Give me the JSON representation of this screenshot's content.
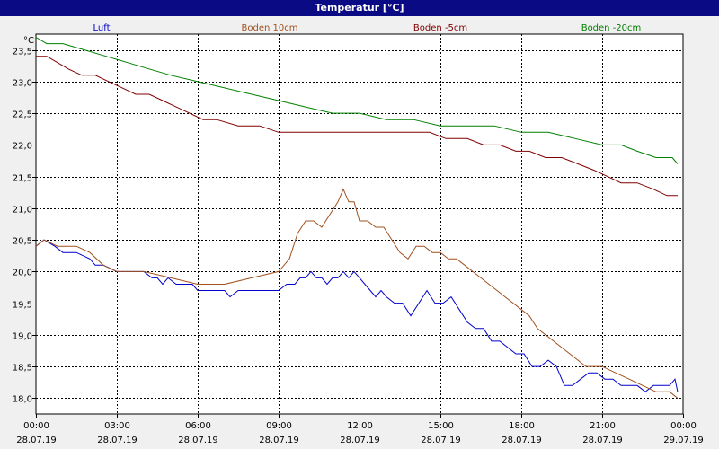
{
  "window": {
    "title": "Temperatur [°C]"
  },
  "chart_data": {
    "type": "line",
    "title": "Temperatur [°C]",
    "ylabel": "°C",
    "xlabel": "",
    "ylim": [
      17.75,
      23.75
    ],
    "xlim": [
      0,
      24
    ],
    "grid": true,
    "legend_placement": "top",
    "y_ticks": [
      {
        "value": 18.0,
        "label": "18,0"
      },
      {
        "value": 18.5,
        "label": "18,5"
      },
      {
        "value": 19.0,
        "label": "19,0"
      },
      {
        "value": 19.5,
        "label": "19,5"
      },
      {
        "value": 20.0,
        "label": "20,0"
      },
      {
        "value": 20.5,
        "label": "20,5"
      },
      {
        "value": 21.0,
        "label": "21,0"
      },
      {
        "value": 21.5,
        "label": "21,5"
      },
      {
        "value": 22.0,
        "label": "22,0"
      },
      {
        "value": 22.5,
        "label": "22,5"
      },
      {
        "value": 23.0,
        "label": "23,0"
      },
      {
        "value": 23.5,
        "label": "23,5"
      }
    ],
    "x_ticks": [
      {
        "value": 0,
        "time": "00:00",
        "date": "28.07.19"
      },
      {
        "value": 3,
        "time": "03:00",
        "date": "28.07.19"
      },
      {
        "value": 6,
        "time": "06:00",
        "date": "28.07.19"
      },
      {
        "value": 9,
        "time": "09:00",
        "date": "28.07.19"
      },
      {
        "value": 12,
        "time": "12:00",
        "date": "28.07.19"
      },
      {
        "value": 15,
        "time": "15:00",
        "date": "28.07.19"
      },
      {
        "value": 18,
        "time": "18:00",
        "date": "28.07.19"
      },
      {
        "value": 21,
        "time": "21:00",
        "date": "28.07.19"
      },
      {
        "value": 24,
        "time": "00:00",
        "date": "29.07.19"
      }
    ],
    "series": [
      {
        "name": "Luft",
        "color": "#0000cc",
        "x": [
          0,
          0.3,
          0.7,
          1.0,
          1.5,
          2.0,
          2.2,
          2.5,
          3.0,
          3.5,
          4.0,
          4.3,
          4.5,
          4.7,
          4.9,
          5.2,
          5.5,
          5.8,
          6.0,
          6.5,
          6.8,
          7.0,
          7.2,
          7.5,
          8.0,
          8.5,
          9.0,
          9.3,
          9.6,
          9.8,
          10.0,
          10.2,
          10.4,
          10.6,
          10.8,
          11.0,
          11.2,
          11.4,
          11.6,
          11.8,
          12.0,
          12.2,
          12.4,
          12.6,
          12.8,
          13.0,
          13.3,
          13.6,
          13.9,
          14.2,
          14.5,
          14.8,
          15.1,
          15.4,
          15.7,
          16.0,
          16.3,
          16.6,
          16.9,
          17.2,
          17.5,
          17.8,
          18.1,
          18.4,
          18.7,
          19.0,
          19.3,
          19.6,
          19.9,
          20.2,
          20.5,
          20.8,
          21.1,
          21.4,
          21.7,
          22.0,
          22.3,
          22.6,
          22.9,
          23.2,
          23.5,
          23.7,
          23.8
        ],
        "y": [
          20.4,
          20.5,
          20.4,
          20.3,
          20.3,
          20.2,
          20.1,
          20.1,
          20.0,
          20.0,
          20.0,
          19.9,
          19.9,
          19.8,
          19.9,
          19.8,
          19.8,
          19.8,
          19.7,
          19.7,
          19.7,
          19.7,
          19.6,
          19.7,
          19.7,
          19.7,
          19.7,
          19.8,
          19.8,
          19.9,
          19.9,
          20.0,
          19.9,
          19.9,
          19.8,
          19.9,
          19.9,
          20.0,
          19.9,
          20.0,
          19.9,
          19.8,
          19.7,
          19.6,
          19.7,
          19.6,
          19.5,
          19.5,
          19.3,
          19.5,
          19.7,
          19.5,
          19.5,
          19.6,
          19.4,
          19.2,
          19.1,
          19.1,
          18.9,
          18.9,
          18.8,
          18.7,
          18.7,
          18.5,
          18.5,
          18.6,
          18.5,
          18.2,
          18.2,
          18.3,
          18.4,
          18.4,
          18.3,
          18.3,
          18.2,
          18.2,
          18.2,
          18.1,
          18.2,
          18.2,
          18.2,
          18.3,
          18.1
        ]
      },
      {
        "name": "Boden 10cm",
        "color": "#a0501e",
        "x": [
          0,
          0.3,
          0.8,
          1.5,
          2.0,
          2.5,
          3.0,
          4.0,
          5.0,
          6.0,
          7.0,
          8.0,
          9.0,
          9.4,
          9.7,
          10.0,
          10.3,
          10.6,
          10.9,
          11.2,
          11.4,
          11.6,
          11.8,
          12.0,
          12.3,
          12.6,
          12.9,
          13.2,
          13.5,
          13.8,
          14.1,
          14.4,
          14.7,
          15.0,
          15.3,
          15.6,
          15.9,
          16.2,
          16.5,
          16.8,
          17.1,
          17.4,
          17.7,
          18.0,
          18.3,
          18.6,
          18.9,
          19.2,
          19.5,
          19.8,
          20.1,
          20.4,
          20.7,
          21.0,
          21.5,
          22.0,
          22.5,
          23.0,
          23.5,
          23.8
        ],
        "y": [
          20.4,
          20.5,
          20.4,
          20.4,
          20.3,
          20.1,
          20.0,
          20.0,
          19.9,
          19.8,
          19.8,
          19.9,
          20.0,
          20.2,
          20.6,
          20.8,
          20.8,
          20.7,
          20.9,
          21.1,
          21.3,
          21.1,
          21.1,
          20.8,
          20.8,
          20.7,
          20.7,
          20.5,
          20.3,
          20.2,
          20.4,
          20.4,
          20.3,
          20.3,
          20.2,
          20.2,
          20.1,
          20.0,
          19.9,
          19.8,
          19.7,
          19.6,
          19.5,
          19.4,
          19.3,
          19.1,
          19.0,
          18.9,
          18.8,
          18.7,
          18.6,
          18.5,
          18.5,
          18.5,
          18.4,
          18.3,
          18.2,
          18.1,
          18.1,
          18.0
        ]
      },
      {
        "name": "Boden -5cm",
        "color": "#800000",
        "x": [
          0,
          0.4,
          0.8,
          1.2,
          1.7,
          2.2,
          2.7,
          3.2,
          3.7,
          4.2,
          4.7,
          5.2,
          5.7,
          6.2,
          6.7,
          7.5,
          8.3,
          9.0,
          10.0,
          11.0,
          12.0,
          13.0,
          14.0,
          14.6,
          15.2,
          16.0,
          16.6,
          17.2,
          17.8,
          18.3,
          18.9,
          19.5,
          20.1,
          20.7,
          21.2,
          21.7,
          22.3,
          22.9,
          23.4,
          23.8
        ],
        "y": [
          23.4,
          23.4,
          23.3,
          23.2,
          23.1,
          23.1,
          23.0,
          22.9,
          22.8,
          22.8,
          22.7,
          22.6,
          22.5,
          22.4,
          22.4,
          22.3,
          22.3,
          22.2,
          22.2,
          22.2,
          22.2,
          22.2,
          22.2,
          22.2,
          22.1,
          22.1,
          22.0,
          22.0,
          21.9,
          21.9,
          21.8,
          21.8,
          21.7,
          21.6,
          21.5,
          21.4,
          21.4,
          21.3,
          21.2,
          21.2
        ]
      },
      {
        "name": "Boden -20cm",
        "color": "#008000",
        "x": [
          0,
          0.4,
          1.0,
          1.8,
          2.6,
          3.4,
          4.2,
          5.0,
          6.0,
          7.0,
          8.0,
          9.0,
          10.0,
          11.0,
          12.0,
          13.0,
          14.0,
          15.0,
          16.0,
          17.0,
          18.0,
          19.0,
          20.0,
          21.0,
          21.7,
          22.3,
          23.0,
          23.6,
          23.8
        ],
        "y": [
          23.7,
          23.6,
          23.6,
          23.5,
          23.4,
          23.3,
          23.2,
          23.1,
          23.0,
          22.9,
          22.8,
          22.7,
          22.6,
          22.5,
          22.5,
          22.4,
          22.4,
          22.3,
          22.3,
          22.3,
          22.2,
          22.2,
          22.1,
          22.0,
          22.0,
          21.9,
          21.8,
          21.8,
          21.7
        ]
      }
    ]
  }
}
